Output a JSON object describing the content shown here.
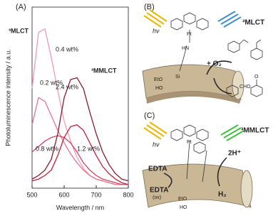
{
  "chart_data": {
    "type": "line",
    "panel_label": "(A)",
    "x_label": "Wavelength / nm",
    "y_label": "Photoluminescence intensity / a.u.",
    "x": [
      500,
      520,
      540,
      560,
      580,
      600,
      620,
      640,
      660,
      680,
      700,
      720,
      740,
      760,
      780,
      800
    ],
    "series": [
      {
        "name": "0.4 wt%",
        "color": "#f29ab0",
        "values": [
          0.55,
          0.86,
          0.88,
          0.72,
          0.54,
          0.37,
          0.26,
          0.17,
          0.11,
          0.07,
          0.05,
          0.04,
          0.03,
          0.02,
          0.02,
          0.02
        ]
      },
      {
        "name": "0.2 wt%",
        "color": "#e8728e",
        "values": [
          0.35,
          0.5,
          0.48,
          0.4,
          0.32,
          0.25,
          0.19,
          0.14,
          0.1,
          0.07,
          0.05,
          0.04,
          0.03,
          0.02,
          0.02,
          0.02
        ]
      },
      {
        "name": "0.8 wt%",
        "color": "#d8405e",
        "values": [
          0.2,
          0.23,
          0.26,
          0.28,
          0.29,
          0.28,
          0.25,
          0.2,
          0.14,
          0.1,
          0.07,
          0.05,
          0.04,
          0.03,
          0.02,
          0.02
        ]
      },
      {
        "name": "2.4 wt%",
        "color": "#8b1a2e",
        "values": [
          0.05,
          0.07,
          0.1,
          0.16,
          0.3,
          0.5,
          0.6,
          0.61,
          0.55,
          0.42,
          0.3,
          0.2,
          0.13,
          0.08,
          0.05,
          0.04
        ]
      },
      {
        "name": "1.2 wt%",
        "color": "#c41e3e",
        "values": [
          0.04,
          0.05,
          0.07,
          0.1,
          0.18,
          0.28,
          0.34,
          0.35,
          0.32,
          0.25,
          0.18,
          0.12,
          0.08,
          0.05,
          0.03,
          0.02
        ]
      }
    ],
    "annotations": [
      {
        "text": "³MLCT",
        "color": "#3a8fd0"
      },
      {
        "text": "³MMLCT",
        "color": "#3cc43c"
      }
    ],
    "xlim": [
      500,
      800
    ],
    "xticks": [
      500,
      600,
      700,
      800
    ],
    "ylim": [
      0,
      1
    ]
  },
  "panel_b": {
    "label": "(B)",
    "light": "hν",
    "state": "³MLCT",
    "amine": "HN",
    "metal": "Pt",
    "silane": "Si",
    "ethoxy": "EtO",
    "hydroxy": "HO",
    "reagent": "+ O₂",
    "aldehyde": "CHO",
    "ketone": "O"
  },
  "panel_c": {
    "label": "(C)",
    "light": "hν",
    "state": "³MMLCT",
    "protons": "2H⁺",
    "donor": "EDTA",
    "donor_ox": "EDTA",
    "ox": "(ox)",
    "product": "H₂",
    "metal": "Pt",
    "ethoxy": "EtO",
    "hydroxy": "HO"
  }
}
